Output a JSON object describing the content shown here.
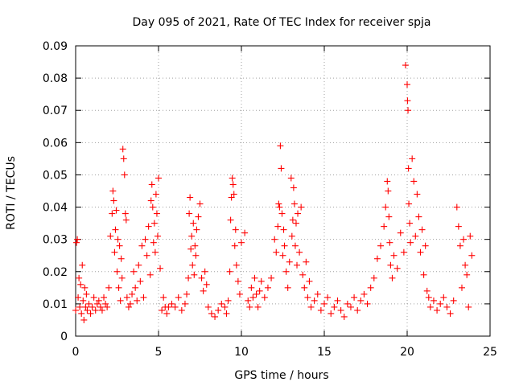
{
  "chart_data": {
    "type": "scatter",
    "title": "Day 095 of 2021, Rate Of TEC Index for receiver spja",
    "xlabel": "GPS time / hours",
    "ylabel": "ROTI / TECUs",
    "xlim": [
      0,
      25
    ],
    "ylim": [
      0,
      0.09
    ],
    "xticks": [
      0,
      5,
      10,
      15,
      20,
      25
    ],
    "yticks": [
      0,
      0.01,
      0.02,
      0.03,
      0.04,
      0.05,
      0.06,
      0.07,
      0.08,
      0.09
    ],
    "xtick_labels": [
      "0",
      "5",
      "10",
      "15",
      "20",
      "25"
    ],
    "ytick_labels": [
      "0",
      "0.01",
      "0.02",
      "0.03",
      "0.04",
      "0.05",
      "0.06",
      "0.07",
      "0.08",
      "0.09"
    ],
    "grid": true,
    "marker": "plus",
    "series": [
      {
        "name": "ROTI",
        "color": "#ff0000",
        "x": [
          0.0,
          0.05,
          0.1,
          0.15,
          0.2,
          0.25,
          0.3,
          0.35,
          0.4,
          0.45,
          0.5,
          0.55,
          0.6,
          0.65,
          0.7,
          0.8,
          0.9,
          1.0,
          1.1,
          1.2,
          1.3,
          1.4,
          1.5,
          1.6,
          1.7,
          1.8,
          1.9,
          2.0,
          2.1,
          2.2,
          2.25,
          2.3,
          2.35,
          2.4,
          2.45,
          2.5,
          2.55,
          2.6,
          2.65,
          2.7,
          2.75,
          2.8,
          2.85,
          2.9,
          2.95,
          3.0,
          3.05,
          3.1,
          3.2,
          3.3,
          3.4,
          3.5,
          3.6,
          3.7,
          3.8,
          3.9,
          4.0,
          4.1,
          4.2,
          4.3,
          4.4,
          4.5,
          4.55,
          4.6,
          4.65,
          4.7,
          4.75,
          4.8,
          4.85,
          4.9,
          4.95,
          5.0,
          5.1,
          5.2,
          5.3,
          5.4,
          5.5,
          5.6,
          5.8,
          6.0,
          6.2,
          6.4,
          6.6,
          6.7,
          6.8,
          6.85,
          6.9,
          6.95,
          7.0,
          7.05,
          7.1,
          7.15,
          7.2,
          7.25,
          7.3,
          7.4,
          7.5,
          7.6,
          7.7,
          7.8,
          7.9,
          8.0,
          8.2,
          8.4,
          8.6,
          8.8,
          9.0,
          9.1,
          9.2,
          9.3,
          9.35,
          9.4,
          9.45,
          9.5,
          9.55,
          9.6,
          9.65,
          9.7,
          9.8,
          9.9,
          10.0,
          10.2,
          10.4,
          10.5,
          10.6,
          10.7,
          10.8,
          10.9,
          11.0,
          11.1,
          11.2,
          11.4,
          11.6,
          11.8,
          12.0,
          12.1,
          12.2,
          12.25,
          12.3,
          12.35,
          12.4,
          12.45,
          12.5,
          12.55,
          12.6,
          12.7,
          12.8,
          12.9,
          13.0,
          13.05,
          13.1,
          13.15,
          13.2,
          13.25,
          13.3,
          13.35,
          13.4,
          13.5,
          13.6,
          13.7,
          13.8,
          13.9,
          14.0,
          14.1,
          14.2,
          14.4,
          14.6,
          14.8,
          15.0,
          15.2,
          15.4,
          15.6,
          15.8,
          16.0,
          16.2,
          16.4,
          16.6,
          16.8,
          17.0,
          17.2,
          17.4,
          17.6,
          17.8,
          18.0,
          18.2,
          18.4,
          18.6,
          18.7,
          18.8,
          18.85,
          18.9,
          18.95,
          19.0,
          19.1,
          19.2,
          19.4,
          19.6,
          19.8,
          19.9,
          20.0,
          20.02,
          20.05,
          20.08,
          20.1,
          20.15,
          20.2,
          20.3,
          20.4,
          20.5,
          20.6,
          20.7,
          20.8,
          20.9,
          21.0,
          21.1,
          21.2,
          21.3,
          21.4,
          21.6,
          21.8,
          22.0,
          22.2,
          22.4,
          22.6,
          22.8,
          23.0,
          23.1,
          23.2,
          23.3,
          23.4,
          23.5,
          23.6,
          23.7,
          23.8,
          23.9
        ],
        "y": [
          0.008,
          0.029,
          0.03,
          0.012,
          0.018,
          0.009,
          0.016,
          0.007,
          0.022,
          0.011,
          0.005,
          0.015,
          0.009,
          0.013,
          0.008,
          0.01,
          0.007,
          0.009,
          0.012,
          0.008,
          0.01,
          0.011,
          0.009,
          0.008,
          0.012,
          0.01,
          0.009,
          0.015,
          0.031,
          0.038,
          0.045,
          0.042,
          0.026,
          0.033,
          0.039,
          0.02,
          0.03,
          0.015,
          0.028,
          0.011,
          0.024,
          0.018,
          0.058,
          0.055,
          0.05,
          0.038,
          0.036,
          0.012,
          0.009,
          0.01,
          0.013,
          0.02,
          0.015,
          0.011,
          0.022,
          0.017,
          0.028,
          0.012,
          0.03,
          0.025,
          0.034,
          0.019,
          0.042,
          0.047,
          0.04,
          0.029,
          0.035,
          0.026,
          0.044,
          0.038,
          0.031,
          0.049,
          0.021,
          0.008,
          0.012,
          0.009,
          0.007,
          0.009,
          0.01,
          0.009,
          0.012,
          0.008,
          0.01,
          0.013,
          0.018,
          0.038,
          0.043,
          0.027,
          0.031,
          0.022,
          0.035,
          0.019,
          0.028,
          0.025,
          0.033,
          0.037,
          0.041,
          0.018,
          0.014,
          0.02,
          0.016,
          0.009,
          0.007,
          0.006,
          0.008,
          0.01,
          0.009,
          0.007,
          0.011,
          0.02,
          0.036,
          0.043,
          0.049,
          0.047,
          0.044,
          0.028,
          0.033,
          0.022,
          0.017,
          0.013,
          0.029,
          0.032,
          0.011,
          0.009,
          0.015,
          0.012,
          0.018,
          0.013,
          0.009,
          0.014,
          0.017,
          0.012,
          0.015,
          0.018,
          0.03,
          0.026,
          0.034,
          0.041,
          0.04,
          0.059,
          0.052,
          0.038,
          0.025,
          0.033,
          0.028,
          0.02,
          0.015,
          0.023,
          0.049,
          0.031,
          0.036,
          0.046,
          0.041,
          0.028,
          0.035,
          0.022,
          0.038,
          0.026,
          0.04,
          0.019,
          0.015,
          0.023,
          0.012,
          0.017,
          0.009,
          0.011,
          0.013,
          0.008,
          0.01,
          0.012,
          0.007,
          0.009,
          0.011,
          0.008,
          0.006,
          0.01,
          0.009,
          0.012,
          0.008,
          0.011,
          0.013,
          0.01,
          0.015,
          0.018,
          0.024,
          0.028,
          0.034,
          0.04,
          0.048,
          0.045,
          0.037,
          0.029,
          0.022,
          0.018,
          0.025,
          0.021,
          0.032,
          0.026,
          0.084,
          0.078,
          0.073,
          0.07,
          0.052,
          0.041,
          0.035,
          0.029,
          0.055,
          0.048,
          0.031,
          0.044,
          0.037,
          0.026,
          0.033,
          0.019,
          0.028,
          0.014,
          0.012,
          0.009,
          0.011,
          0.008,
          0.01,
          0.012,
          0.009,
          0.007,
          0.011,
          0.04,
          0.034,
          0.028,
          0.015,
          0.03,
          0.022,
          0.019,
          0.009,
          0.031,
          0.025
        ]
      }
    ]
  }
}
